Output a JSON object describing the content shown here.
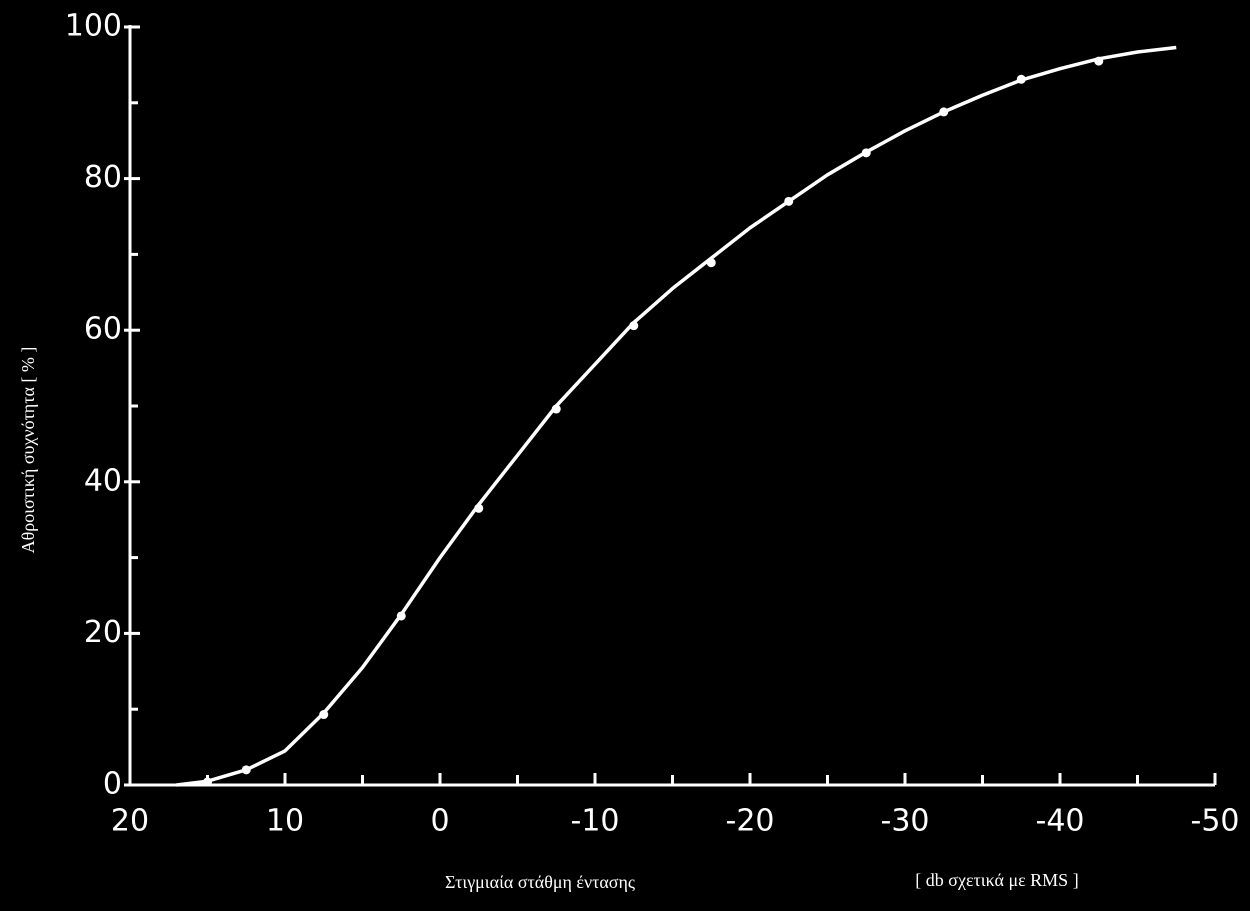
{
  "chart_data": {
    "type": "line",
    "y_label": "Αθροιστική συχνότητα [ % ]",
    "x_label": "Στιγμιαία στάθμη έντασης",
    "x_unit_label": "[ db σχετικά με RMS ]",
    "xlim": [
      20,
      -50
    ],
    "xticks": [
      20,
      10,
      0,
      -10,
      -20,
      -30,
      -40,
      -50
    ],
    "xminorticks": [
      15,
      5,
      -5,
      -15,
      -25,
      -35,
      -45
    ],
    "ylim": [
      0,
      100
    ],
    "yticks": [
      0,
      20,
      40,
      60,
      80,
      100
    ],
    "yminorticks": [
      10,
      30,
      50,
      70,
      90
    ],
    "color": "#ffffff",
    "series": [
      {
        "style": "markers",
        "x": [
          15,
          12.5,
          7.5,
          2.5,
          -2.5,
          -7.5,
          -12.5,
          -17.5,
          -22.5,
          -27.5,
          -32.5,
          -37.5,
          -42.5
        ],
        "values": [
          0.4,
          2,
          9.3,
          22.3,
          36.5,
          49.6,
          60.6,
          68.9,
          77,
          83.4,
          88.8,
          93.1,
          95.5
        ]
      },
      {
        "style": "line",
        "x": [
          17,
          15,
          12.5,
          10,
          7.5,
          5,
          2.5,
          0,
          -2.5,
          -5,
          -7.5,
          -10,
          -12.5,
          -15,
          -17.5,
          -20,
          -22.5,
          -25,
          -27.5,
          -30,
          -32.5,
          -35,
          -37.5,
          -40,
          -42.5,
          -45,
          -47.5
        ],
        "values": [
          0,
          0.5,
          2,
          4.5,
          9.5,
          15.5,
          22.5,
          30,
          37,
          43.5,
          50,
          55.5,
          61,
          65.5,
          69.5,
          73.5,
          77,
          80.5,
          83.5,
          86.3,
          88.8,
          91,
          93,
          94.5,
          95.8,
          96.7,
          97.3
        ]
      }
    ]
  }
}
